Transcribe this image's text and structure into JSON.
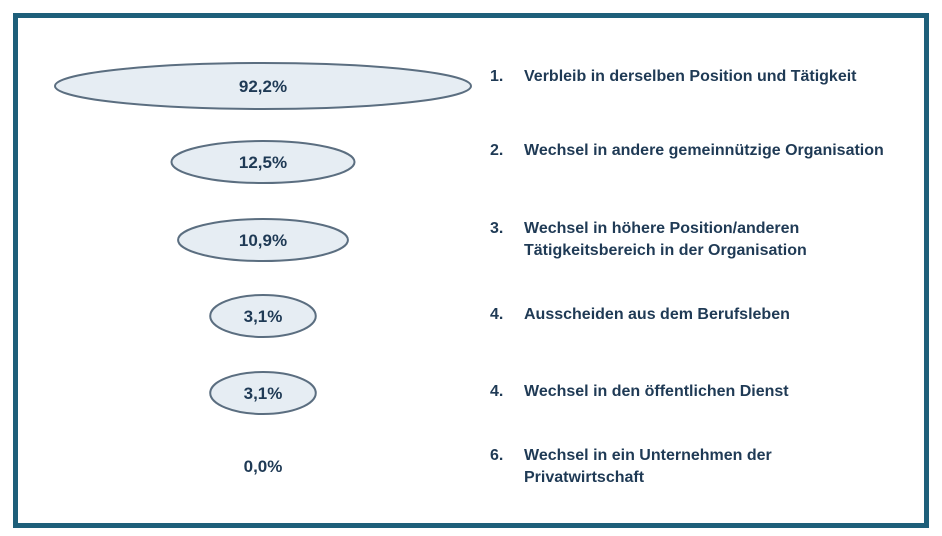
{
  "colors": {
    "frame": "#1e5f7a",
    "ellipse_fill": "#e6edf3",
    "ellipse_stroke": "#5b6e80",
    "text": "#1f3a55"
  },
  "chart_data": {
    "type": "bubble-list",
    "unit": "%",
    "items": [
      {
        "rank": "1.",
        "label": "Verbleib in derselben Position und Tätigkeit",
        "value": 92.2,
        "value_label": "92,2%"
      },
      {
        "rank": "2.",
        "label": "Wechsel in andere gemeinnützige Organisation",
        "value": 12.5,
        "value_label": "12,5%"
      },
      {
        "rank": "3.",
        "label": "Wechsel in höhere Position/anderen Tätigkeitsbereich in der Organisation",
        "value": 10.9,
        "value_label": "10,9%"
      },
      {
        "rank": "4.",
        "label": "Ausscheiden aus dem Berufsleben",
        "value": 3.1,
        "value_label": "3,1%"
      },
      {
        "rank": "4.",
        "label": "Wechsel in den öffentlichen Dienst",
        "value": 3.1,
        "value_label": "3,1%"
      },
      {
        "rank": "6.",
        "label": "Wechsel in ein Unternehmen der Privatwirtschaft",
        "value": 0.0,
        "value_label": "0,0%"
      }
    ]
  }
}
